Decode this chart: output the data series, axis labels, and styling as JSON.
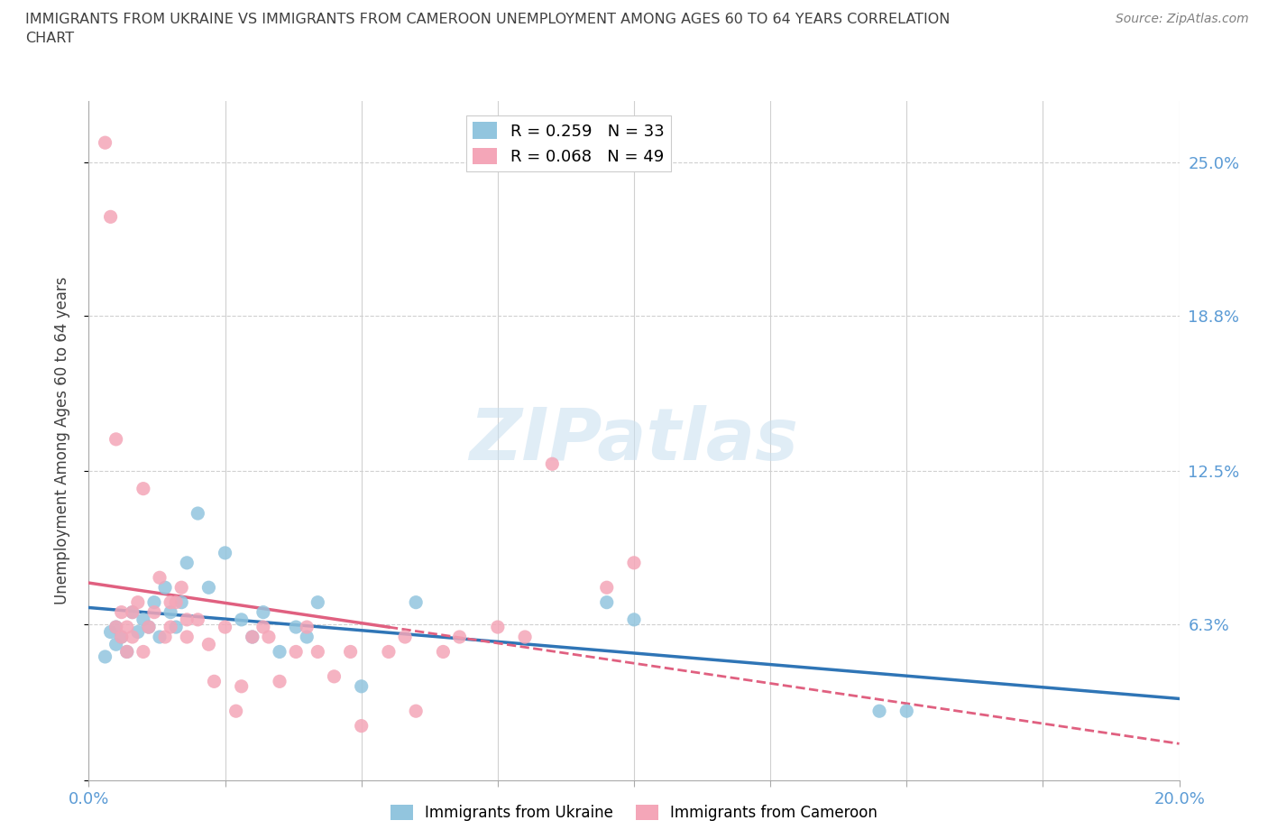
{
  "title": "IMMIGRANTS FROM UKRAINE VS IMMIGRANTS FROM CAMEROON UNEMPLOYMENT AMONG AGES 60 TO 64 YEARS CORRELATION\nCHART",
  "source": "Source: ZipAtlas.com",
  "ylabel": "Unemployment Among Ages 60 to 64 years",
  "xlim": [
    0.0,
    0.2
  ],
  "ylim": [
    0.0,
    0.275
  ],
  "yticks": [
    0.0,
    0.063,
    0.125,
    0.188,
    0.25
  ],
  "ytick_labels": [
    "",
    "6.3%",
    "12.5%",
    "18.8%",
    "25.0%"
  ],
  "xticks": [
    0.0,
    0.025,
    0.05,
    0.075,
    0.1,
    0.125,
    0.15,
    0.175,
    0.2
  ],
  "xtick_labels": [
    "0.0%",
    "",
    "",
    "",
    "",
    "",
    "",
    "",
    "20.0%"
  ],
  "ukraine_color": "#92c5de",
  "cameroon_color": "#f4a6b8",
  "ukraine_line_color": "#2F75B6",
  "cameroon_line_color": "#E06080",
  "ukraine_R": 0.259,
  "ukraine_N": 33,
  "cameroon_R": 0.068,
  "cameroon_N": 49,
  "ukraine_scatter_x": [
    0.003,
    0.004,
    0.005,
    0.005,
    0.006,
    0.007,
    0.008,
    0.009,
    0.01,
    0.011,
    0.012,
    0.013,
    0.014,
    0.015,
    0.016,
    0.017,
    0.018,
    0.02,
    0.022,
    0.025,
    0.028,
    0.03,
    0.032,
    0.035,
    0.038,
    0.04,
    0.042,
    0.05,
    0.06,
    0.095,
    0.1,
    0.145,
    0.15
  ],
  "ukraine_scatter_y": [
    0.05,
    0.06,
    0.062,
    0.055,
    0.058,
    0.052,
    0.068,
    0.06,
    0.065,
    0.062,
    0.072,
    0.058,
    0.078,
    0.068,
    0.062,
    0.072,
    0.088,
    0.108,
    0.078,
    0.092,
    0.065,
    0.058,
    0.068,
    0.052,
    0.062,
    0.058,
    0.072,
    0.038,
    0.072,
    0.072,
    0.065,
    0.028,
    0.028
  ],
  "cameroon_scatter_x": [
    0.003,
    0.004,
    0.005,
    0.005,
    0.006,
    0.006,
    0.007,
    0.007,
    0.008,
    0.008,
    0.009,
    0.01,
    0.01,
    0.011,
    0.012,
    0.013,
    0.014,
    0.015,
    0.015,
    0.016,
    0.017,
    0.018,
    0.018,
    0.02,
    0.022,
    0.023,
    0.025,
    0.027,
    0.028,
    0.03,
    0.032,
    0.033,
    0.035,
    0.038,
    0.04,
    0.042,
    0.045,
    0.048,
    0.05,
    0.055,
    0.058,
    0.06,
    0.065,
    0.068,
    0.075,
    0.08,
    0.085,
    0.095,
    0.1
  ],
  "cameroon_scatter_y": [
    0.258,
    0.228,
    0.138,
    0.062,
    0.058,
    0.068,
    0.052,
    0.062,
    0.068,
    0.058,
    0.072,
    0.052,
    0.118,
    0.062,
    0.068,
    0.082,
    0.058,
    0.062,
    0.072,
    0.072,
    0.078,
    0.058,
    0.065,
    0.065,
    0.055,
    0.04,
    0.062,
    0.028,
    0.038,
    0.058,
    0.062,
    0.058,
    0.04,
    0.052,
    0.062,
    0.052,
    0.042,
    0.052,
    0.022,
    0.052,
    0.058,
    0.028,
    0.052,
    0.058,
    0.062,
    0.058,
    0.128,
    0.078,
    0.088
  ],
  "watermark_text": "ZIPatlas",
  "background_color": "#ffffff",
  "grid_color": "#d0d0d0",
  "axis_label_color": "#5b9bd5",
  "title_color": "#404040"
}
